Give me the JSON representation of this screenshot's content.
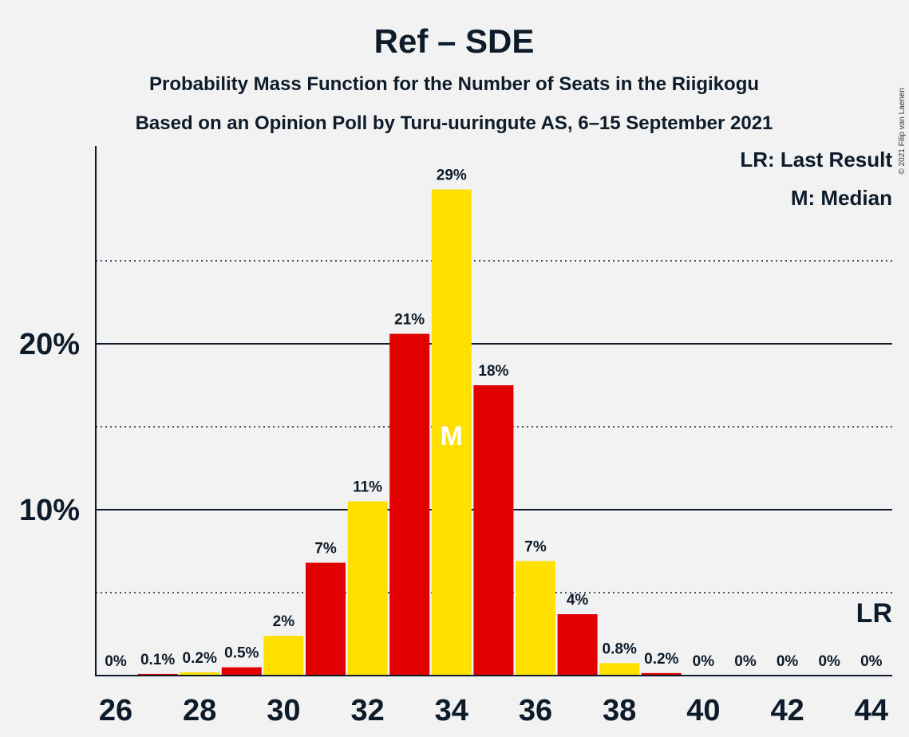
{
  "chart_data": {
    "type": "bar",
    "title": "Ref – SDE",
    "subtitle1": "Probability Mass Function for the Number of Seats in the Riigikogu",
    "subtitle2": "Based on an Opinion Poll by Turu-uuringute AS, 6–15 September 2021",
    "copyright": "© 2021 Filip van Laenen",
    "legend": {
      "lr": "LR: Last Result",
      "m": "M: Median",
      "placement": "top-right"
    },
    "categories": [
      26,
      27,
      28,
      29,
      30,
      31,
      32,
      33,
      34,
      35,
      36,
      37,
      38,
      39,
      40,
      41,
      42,
      43,
      44
    ],
    "values": [
      0,
      0.1,
      0.2,
      0.5,
      2.4,
      6.8,
      10.5,
      20.6,
      29.3,
      17.5,
      6.9,
      3.7,
      0.75,
      0.15,
      0,
      0,
      0,
      0,
      0
    ],
    "labels": [
      "0%",
      "0.1%",
      "0.2%",
      "0.5%",
      "2%",
      "7%",
      "11%",
      "21%",
      "29%",
      "18%",
      "7%",
      "4%",
      "0.8%",
      "0.2%",
      "0%",
      "0%",
      "0%",
      "0%",
      "0%"
    ],
    "x_tick_labels": [
      "26",
      "28",
      "30",
      "32",
      "34",
      "36",
      "38",
      "40",
      "42",
      "44"
    ],
    "y_tick_labels": [
      "10%",
      "20%"
    ],
    "y_ticks": [
      10,
      20
    ],
    "y_minor_ticks": [
      5,
      15,
      25
    ],
    "ylim": [
      0,
      32
    ],
    "median": 34,
    "median_label": "M",
    "last_result": 44,
    "last_result_label": "LR",
    "colors": {
      "red": "#e00000",
      "yellow": "#ffe000",
      "text": "#0d1b2a",
      "background": "#f2f2f2"
    }
  }
}
